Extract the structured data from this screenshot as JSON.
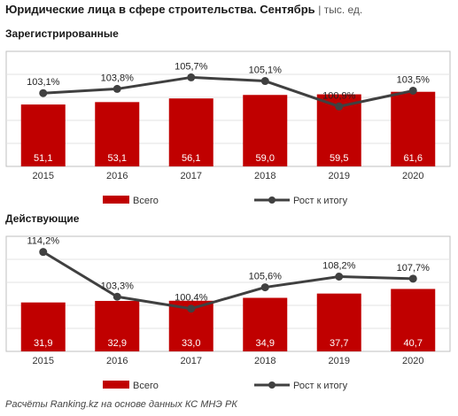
{
  "title": "Юридические лица в сфере строительства. Сентябрь",
  "unit": "тыс. ед.",
  "footer": "Расчёты Ranking.kz на основе данных КС МНЭ РК",
  "colors": {
    "bar": "#c00000",
    "line": "#404040"
  },
  "chart_data": [
    {
      "type": "bar",
      "subtitle": "Зарегистрированные",
      "categories": [
        "2015",
        "2016",
        "2017",
        "2018",
        "2019",
        "2020"
      ],
      "series": [
        {
          "name": "Всего",
          "type": "bar",
          "values": [
            51.1,
            53.1,
            56.1,
            59.0,
            59.5,
            61.6
          ],
          "labels": [
            "51,1",
            "53,1",
            "56,1",
            "59,0",
            "59,5",
            "61,6"
          ]
        },
        {
          "name": "Рост к итогу",
          "type": "line",
          "values": [
            103.1,
            103.8,
            105.7,
            105.1,
            100.9,
            103.5
          ],
          "labels": [
            "103,1%",
            "103,8%",
            "105,7%",
            "105,1%",
            "100,9%",
            "103,5%"
          ]
        }
      ],
      "legend": "bottom"
    },
    {
      "type": "bar",
      "subtitle": "Действующие",
      "categories": [
        "2015",
        "2016",
        "2017",
        "2018",
        "2019",
        "2020"
      ],
      "series": [
        {
          "name": "Всего",
          "type": "bar",
          "values": [
            31.9,
            32.9,
            33.0,
            34.9,
            37.7,
            40.7
          ],
          "labels": [
            "31,9",
            "32,9",
            "33,0",
            "34,9",
            "37,7",
            "40,7"
          ]
        },
        {
          "name": "Рост к итогу",
          "type": "line",
          "values": [
            114.2,
            103.3,
            100.4,
            105.6,
            108.2,
            107.7
          ],
          "labels": [
            "114,2%",
            "103,3%",
            "100,4%",
            "105,6%",
            "108,2%",
            "107,7%"
          ]
        }
      ],
      "legend": "bottom"
    }
  ]
}
